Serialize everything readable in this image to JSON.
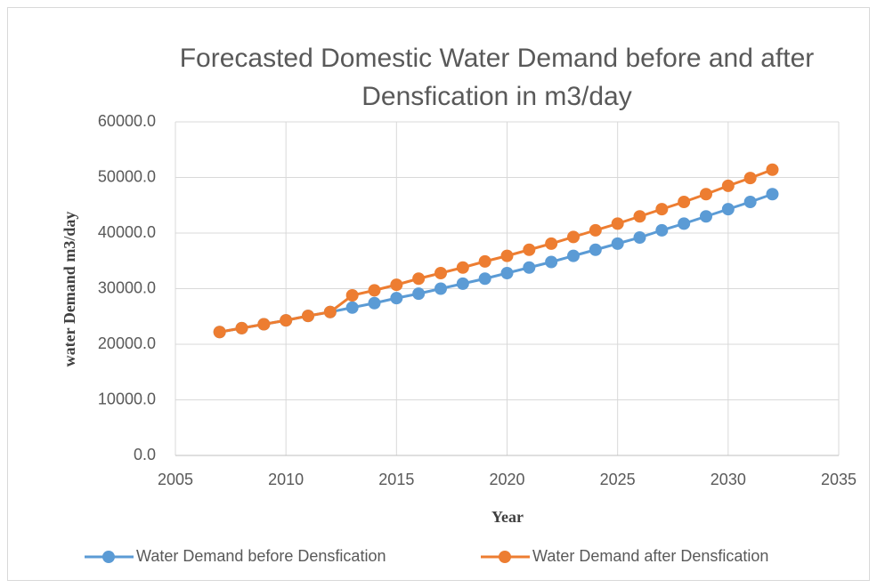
{
  "chart_data": {
    "type": "line",
    "title": "Forecasted Domestic Water Demand before and after Densfication in m3/day",
    "x_label": "Year",
    "y_label": "water Demand m3/day",
    "x": [
      2007,
      2008,
      2009,
      2010,
      2011,
      2012,
      2013,
      2014,
      2015,
      2016,
      2017,
      2018,
      2019,
      2020,
      2021,
      2022,
      2023,
      2024,
      2025,
      2026,
      2027,
      2028,
      2029,
      2030,
      2031,
      2032
    ],
    "series": [
      {
        "name": "Water Demand before Densfication",
        "color": "#5b9bd5",
        "values": [
          22200,
          22900,
          23600,
          24300,
          25100,
          25800,
          26600,
          27400,
          28300,
          29100,
          30000,
          30900,
          31800,
          32800,
          33800,
          34800,
          35900,
          37000,
          38100,
          39200,
          40500,
          41700,
          43000,
          44300,
          45600,
          47000
        ]
      },
      {
        "name": "Water Demand after Densfication",
        "color": "#ed7d31",
        "values": [
          22200,
          22900,
          23600,
          24300,
          25100,
          25800,
          28800,
          29700,
          30700,
          31800,
          32800,
          33800,
          34900,
          35900,
          37000,
          38100,
          39300,
          40500,
          41700,
          43000,
          44300,
          45600,
          47000,
          48500,
          49900,
          51400
        ]
      }
    ],
    "xlim": [
      2005,
      2035
    ],
    "xticks": [
      2005,
      2010,
      2015,
      2020,
      2025,
      2030,
      2035
    ],
    "ylim": [
      0,
      60000
    ],
    "yticks": [
      {
        "value": 0,
        "label": "0.0"
      },
      {
        "value": 10000,
        "label": "10000.0"
      },
      {
        "value": 20000,
        "label": "20000.0"
      },
      {
        "value": 30000,
        "label": "30000.0"
      },
      {
        "value": 40000,
        "label": "40000.0"
      },
      {
        "value": 50000,
        "label": "50000.0"
      },
      {
        "value": 60000,
        "label": "60000.0"
      }
    ],
    "grid": true,
    "legend": "bottom"
  }
}
